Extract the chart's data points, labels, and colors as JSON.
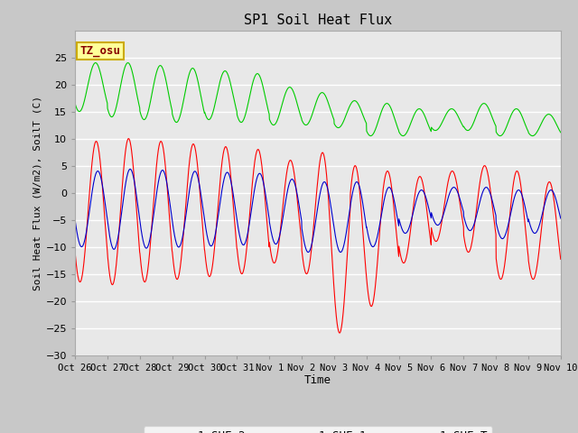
{
  "title": "SP1 Soil Heat Flux",
  "xlabel": "Time",
  "ylabel": "Soil Heat Flux (W/m2), SoilT (C)",
  "ylim": [
    -30,
    30
  ],
  "yticks": [
    -30,
    -25,
    -20,
    -15,
    -10,
    -5,
    0,
    5,
    10,
    15,
    20,
    25
  ],
  "tick_labels": [
    "Oct 26",
    "Oct 27",
    "Oct 28",
    "Oct 29",
    "Oct 30",
    "Oct 31",
    "Nov 1",
    "Nov 2",
    "Nov 3",
    "Nov 4",
    "Nov 5",
    "Nov 6",
    "Nov 7",
    "Nov 8",
    "Nov 9",
    "Nov 10"
  ],
  "colors": {
    "sp1_SHF_2": "#ff0000",
    "sp1_SHF_1": "#0000cc",
    "sp1_SHF_T": "#00cc00"
  },
  "plot_bg": "#e8e8e8",
  "annotation_text": "TZ_osu",
  "annotation_bg": "#ffff99",
  "annotation_border": "#ccaa00",
  "annotation_color": "#880000"
}
